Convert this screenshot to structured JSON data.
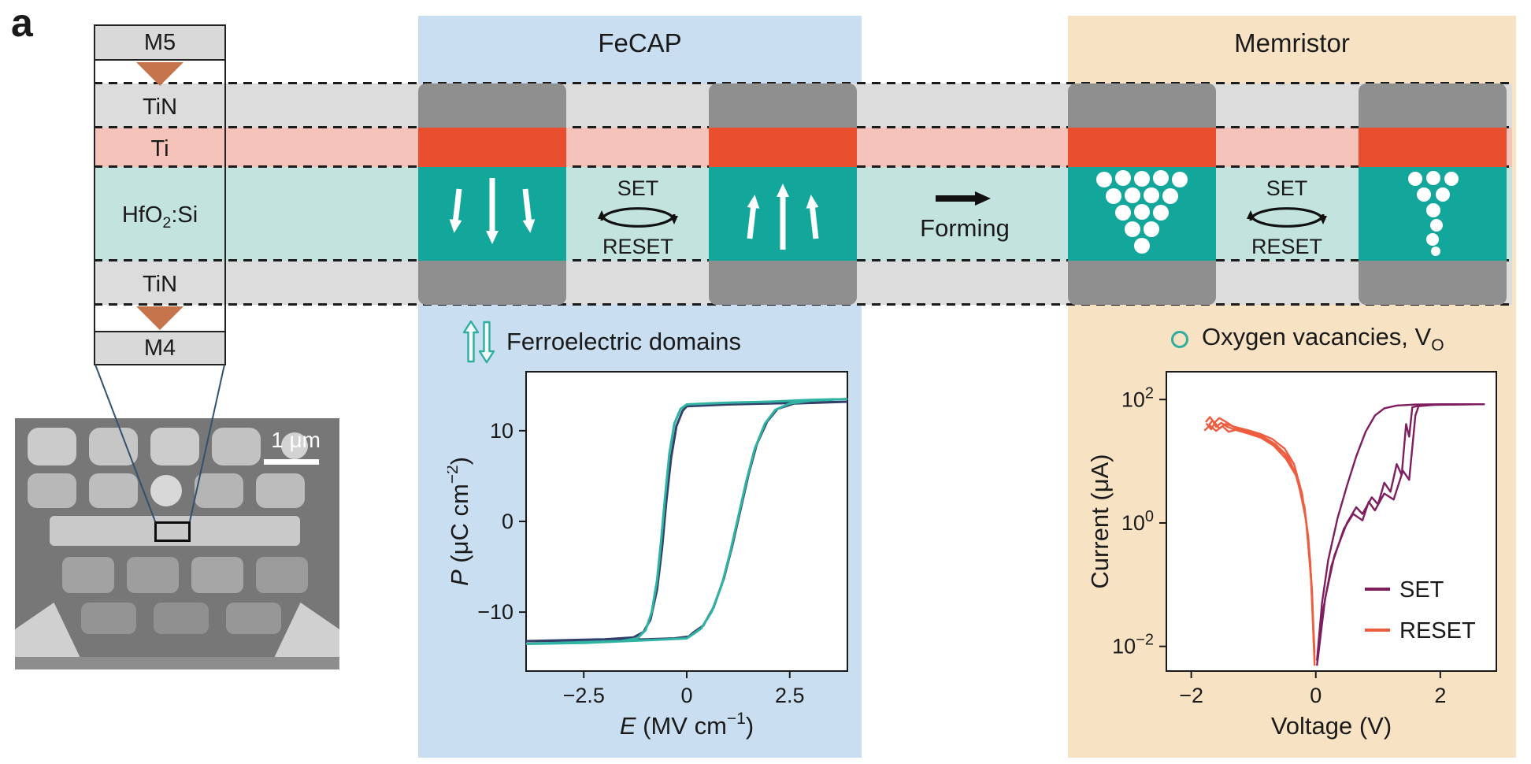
{
  "panel_label": "a",
  "stack": {
    "m5": "M5",
    "tin_top": "TiN",
    "ti": "Ti",
    "hfo2": {
      "pre": "HfO",
      "sub": "2",
      "post": ":Si"
    },
    "tin_bottom": "TiN",
    "m4": "M4"
  },
  "sem": {
    "scale_bar_label": "1 μm"
  },
  "fecap": {
    "title": "FeCAP",
    "cycle": {
      "set": "SET",
      "reset": "RESET"
    },
    "legend_label": "Ferroelectric domains"
  },
  "memristor": {
    "title": "Memristor",
    "cycle": {
      "set": "SET",
      "reset": "RESET"
    },
    "legend": {
      "pre": "Oxygen vacancies, V",
      "sub": "O"
    }
  },
  "forming_label": "Forming",
  "colors": {
    "fecap_bg": "#c9def0",
    "memristor_bg": "#f7e2c3",
    "tin_band": "#dcdcdc",
    "ti_band": "#f5c3ba",
    "hfo2_band": "#c3e4de",
    "tin_device": "#8f8f8f",
    "ti_device": "#e94e2e",
    "hfo2_device": "#12a79a",
    "teal_accent": "#2fae9f"
  },
  "chart_data": [
    {
      "type": "line",
      "name": "ferroelectric-hysteresis",
      "xlabel": {
        "variable": "E",
        "unit_pre": " (MV cm",
        "exponent": "−1",
        "unit_post": ")"
      },
      "ylabel": {
        "variable": "P",
        "unit_pre": " (μC cm",
        "exponent": "−2",
        "unit_post": ")"
      },
      "xlim": [
        -3.9,
        3.9
      ],
      "ylim": [
        -16.5,
        16.5
      ],
      "xticks": [
        -2.5,
        0,
        2.5
      ],
      "yticks": [
        10,
        0,
        -10
      ],
      "grid": false,
      "series": [
        {
          "name": "P-E loop (navy)",
          "color": "#333f6b",
          "points": [
            [
              3.9,
              13.2
            ],
            [
              2.0,
              13.0
            ],
            [
              1.0,
              12.9
            ],
            [
              0.5,
              12.8
            ],
            [
              0.0,
              12.7
            ],
            [
              -0.1,
              12.2
            ],
            [
              -0.25,
              10.5
            ],
            [
              -0.38,
              7.0
            ],
            [
              -0.5,
              2.0
            ],
            [
              -0.6,
              -3.0
            ],
            [
              -0.72,
              -7.5
            ],
            [
              -0.88,
              -10.8
            ],
            [
              -1.05,
              -12.2
            ],
            [
              -1.3,
              -12.8
            ],
            [
              -2.0,
              -13.0
            ],
            [
              -3.9,
              -13.2
            ],
            [
              -2.0,
              -13.1
            ],
            [
              -1.0,
              -13.0
            ],
            [
              -0.3,
              -12.9
            ],
            [
              0.05,
              -12.7
            ],
            [
              0.15,
              -12.3
            ],
            [
              0.4,
              -11.5
            ],
            [
              0.65,
              -9.5
            ],
            [
              0.9,
              -6.3
            ],
            [
              1.1,
              -2.8
            ],
            [
              1.3,
              1.2
            ],
            [
              1.5,
              5.2
            ],
            [
              1.7,
              8.5
            ],
            [
              1.95,
              11.0
            ],
            [
              2.2,
              12.4
            ],
            [
              2.6,
              13.0
            ],
            [
              3.9,
              13.2
            ]
          ]
        },
        {
          "name": "P-E loop (teal)",
          "color": "#2fb3a3",
          "points": [
            [
              3.9,
              13.5
            ],
            [
              3.0,
              13.4
            ],
            [
              2.0,
              13.2
            ],
            [
              1.0,
              13.1
            ],
            [
              0.5,
              13.0
            ],
            [
              0.0,
              12.9
            ],
            [
              -0.15,
              12.4
            ],
            [
              -0.3,
              10.8
            ],
            [
              -0.42,
              7.5
            ],
            [
              -0.52,
              3.0
            ],
            [
              -0.62,
              -2.0
            ],
            [
              -0.72,
              -6.5
            ],
            [
              -0.85,
              -10.0
            ],
            [
              -1.0,
              -12.0
            ],
            [
              -1.2,
              -12.9
            ],
            [
              -1.6,
              -13.2
            ],
            [
              -2.5,
              -13.3
            ],
            [
              -3.9,
              -13.5
            ],
            [
              -2.5,
              -13.4
            ],
            [
              -1.5,
              -13.2
            ],
            [
              -0.5,
              -13.0
            ],
            [
              0.0,
              -12.9
            ],
            [
              0.1,
              -12.6
            ],
            [
              0.35,
              -11.8
            ],
            [
              0.6,
              -10.0
            ],
            [
              0.85,
              -7.0
            ],
            [
              1.05,
              -3.5
            ],
            [
              1.25,
              0.5
            ],
            [
              1.45,
              4.5
            ],
            [
              1.65,
              8.0
            ],
            [
              1.9,
              10.8
            ],
            [
              2.15,
              12.3
            ],
            [
              2.5,
              13.0
            ],
            [
              3.0,
              13.3
            ],
            [
              3.9,
              13.5
            ]
          ]
        }
      ]
    },
    {
      "type": "line",
      "name": "memristor-iv-switching",
      "xlabel": {
        "variable": "",
        "unit_pre": "Voltage (V)",
        "exponent": "",
        "unit_post": ""
      },
      "ylabel": {
        "variable": "",
        "unit_pre": "Current (μA)",
        "exponent": "",
        "unit_post": ""
      },
      "xlim": [
        -2.4,
        2.9
      ],
      "yscale": "log",
      "ylim_exp": [
        -2.4,
        2.45
      ],
      "xticks": [
        -2,
        0,
        2
      ],
      "ytick_exponents": [
        2,
        0,
        -2
      ],
      "grid": false,
      "legend": [
        {
          "label": "SET",
          "color": "#7e1e5f"
        },
        {
          "label": "RESET",
          "color": "#ee5d40"
        }
      ],
      "series": [
        {
          "name": "SET trace 1",
          "group": "SET",
          "color": "#7e1e5f",
          "points": [
            [
              0.02,
              0.006
            ],
            [
              0.1,
              0.05
            ],
            [
              0.2,
              0.25
            ],
            [
              0.35,
              1.2
            ],
            [
              0.5,
              4
            ],
            [
              0.65,
              12
            ],
            [
              0.8,
              30
            ],
            [
              0.95,
              55
            ],
            [
              1.1,
              72
            ],
            [
              1.3,
              80
            ],
            [
              1.6,
              83
            ],
            [
              2.0,
              84
            ],
            [
              2.7,
              84
            ]
          ]
        },
        {
          "name": "SET trace 2",
          "group": "SET",
          "color": "#7e1e5f",
          "points": [
            [
              0.03,
              0.006
            ],
            [
              0.15,
              0.06
            ],
            [
              0.3,
              0.3
            ],
            [
              0.5,
              1.0
            ],
            [
              0.65,
              1.8
            ],
            [
              0.75,
              1.4
            ],
            [
              0.9,
              2.6
            ],
            [
              1.0,
              2.0
            ],
            [
              1.1,
              4.5
            ],
            [
              1.2,
              3.2
            ],
            [
              1.3,
              9
            ],
            [
              1.38,
              6
            ],
            [
              1.45,
              40
            ],
            [
              1.5,
              25
            ],
            [
              1.55,
              75
            ],
            [
              1.7,
              81
            ],
            [
              2.1,
              83
            ],
            [
              2.7,
              84
            ]
          ]
        },
        {
          "name": "SET trace 3",
          "group": "SET",
          "color": "#7e1e5f",
          "points": [
            [
              0.02,
              0.005
            ],
            [
              0.12,
              0.04
            ],
            [
              0.25,
              0.2
            ],
            [
              0.45,
              0.8
            ],
            [
              0.6,
              1.4
            ],
            [
              0.75,
              1.1
            ],
            [
              0.85,
              2.2
            ],
            [
              0.95,
              1.6
            ],
            [
              1.1,
              3.0
            ],
            [
              1.25,
              2.4
            ],
            [
              1.4,
              7
            ],
            [
              1.5,
              5
            ],
            [
              1.6,
              55
            ],
            [
              1.65,
              78
            ],
            [
              1.9,
              82
            ],
            [
              2.4,
              83
            ],
            [
              2.7,
              84
            ]
          ]
        },
        {
          "name": "RESET trace 1",
          "group": "RESET",
          "color": "#ee5d40",
          "points": [
            [
              -0.02,
              0.006
            ],
            [
              -0.06,
              0.08
            ],
            [
              -0.12,
              0.6
            ],
            [
              -0.22,
              3
            ],
            [
              -0.35,
              9
            ],
            [
              -0.5,
              16
            ],
            [
              -0.7,
              23
            ],
            [
              -0.9,
              28
            ],
            [
              -1.1,
              32
            ],
            [
              -1.3,
              36
            ],
            [
              -1.45,
              40
            ],
            [
              -1.55,
              34
            ],
            [
              -1.62,
              42
            ],
            [
              -1.68,
              33
            ],
            [
              -1.75,
              40
            ]
          ]
        },
        {
          "name": "RESET trace 2",
          "group": "RESET",
          "color": "#ee5d40",
          "points": [
            [
              -0.02,
              0.005
            ],
            [
              -0.07,
              0.1
            ],
            [
              -0.15,
              1.0
            ],
            [
              -0.28,
              5
            ],
            [
              -0.45,
              12
            ],
            [
              -0.65,
              19
            ],
            [
              -0.85,
              25
            ],
            [
              -1.05,
              29
            ],
            [
              -1.25,
              33
            ],
            [
              -1.4,
              30
            ],
            [
              -1.5,
              37
            ],
            [
              -1.6,
              31
            ],
            [
              -1.7,
              38
            ],
            [
              -1.78,
              32
            ]
          ]
        },
        {
          "name": "RESET trace 3",
          "group": "RESET",
          "color": "#ee5d40",
          "points": [
            [
              -0.03,
              0.01
            ],
            [
              -0.09,
              0.25
            ],
            [
              -0.18,
              1.8
            ],
            [
              -0.32,
              6
            ],
            [
              -0.5,
              13
            ],
            [
              -0.7,
              20
            ],
            [
              -0.9,
              26
            ],
            [
              -1.1,
              31
            ],
            [
              -1.3,
              35
            ],
            [
              -1.45,
              44
            ],
            [
              -1.55,
              50
            ],
            [
              -1.63,
              42
            ],
            [
              -1.7,
              52
            ],
            [
              -1.76,
              44
            ]
          ]
        },
        {
          "name": "RESET trace 4",
          "group": "RESET",
          "color": "#ee5d40",
          "points": [
            [
              -0.02,
              0.008
            ],
            [
              -0.08,
              0.15
            ],
            [
              -0.16,
              1.2
            ],
            [
              -0.3,
              5.5
            ],
            [
              -0.48,
              11
            ],
            [
              -0.68,
              18
            ],
            [
              -0.88,
              24
            ],
            [
              -1.08,
              28
            ],
            [
              -1.28,
              32
            ],
            [
              -1.42,
              36
            ],
            [
              -1.52,
              42
            ],
            [
              -1.6,
              36
            ],
            [
              -1.66,
              46
            ],
            [
              -1.72,
              38
            ]
          ]
        }
      ]
    }
  ]
}
